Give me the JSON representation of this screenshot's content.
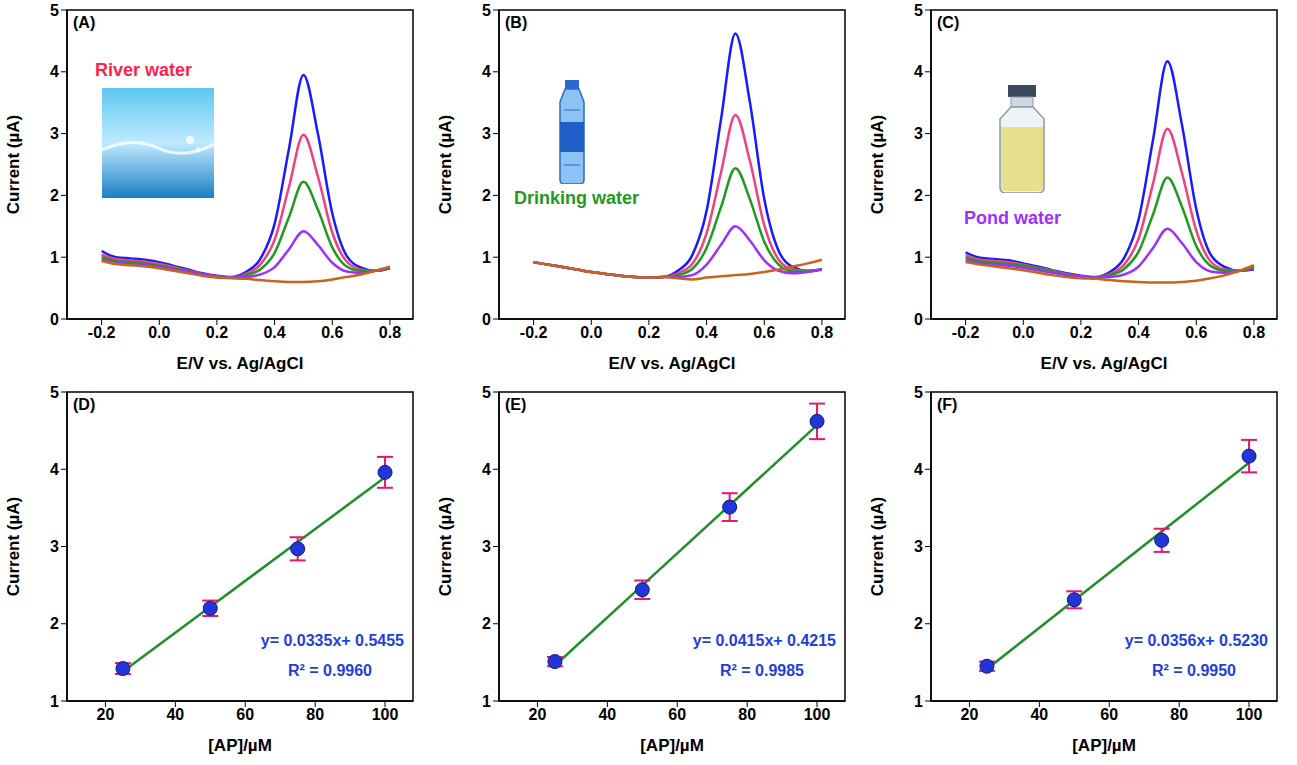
{
  "chart_data": [
    {
      "panel": "(A)",
      "type": "line",
      "annotation": "River water",
      "x_label": "E/V vs. Ag/AgCl",
      "y_label": "Current (µA)",
      "xlim": [
        -0.32,
        0.88
      ],
      "xticks": [
        -0.2,
        {
          "value": 0,
          "label": "0.0"
        },
        0.2,
        0.4,
        0.6,
        0.8
      ],
      "ylim": [
        0,
        5
      ],
      "yticks": [
        0,
        1,
        2,
        3,
        4,
        5
      ],
      "x": [
        -0.2,
        -0.15,
        -0.1,
        -0.05,
        0,
        0.05,
        0.1,
        0.15,
        0.2,
        0.25,
        0.3,
        0.35,
        0.4,
        0.45,
        0.5,
        0.55,
        0.6,
        0.65,
        0.7,
        0.75,
        0.8
      ],
      "series": [
        {
          "color": "#1a1aff",
          "values": [
            1.1,
            1.0,
            0.98,
            0.96,
            0.92,
            0.86,
            0.8,
            0.74,
            0.7,
            0.68,
            0.76,
            0.97,
            1.54,
            2.76,
            3.95,
            3.0,
            1.71,
            1.02,
            0.83,
            0.78,
            0.82
          ]
        },
        {
          "color": "#f0407f",
          "values": [
            1.04,
            0.97,
            0.95,
            0.93,
            0.89,
            0.84,
            0.78,
            0.73,
            0.69,
            0.67,
            0.73,
            0.88,
            1.28,
            2.14,
            2.98,
            2.31,
            1.4,
            0.93,
            0.8,
            0.78,
            0.82
          ]
        },
        {
          "color": "#1f9a1f",
          "values": [
            1.0,
            0.94,
            0.92,
            0.9,
            0.86,
            0.82,
            0.77,
            0.72,
            0.68,
            0.67,
            0.71,
            0.8,
            1.07,
            1.65,
            2.22,
            1.77,
            1.16,
            0.85,
            0.78,
            0.78,
            0.82
          ]
        },
        {
          "color": "#9b30ff",
          "values": [
            0.96,
            0.91,
            0.89,
            0.87,
            0.84,
            0.8,
            0.76,
            0.72,
            0.68,
            0.67,
            0.68,
            0.72,
            0.84,
            1.13,
            1.42,
            1.2,
            0.91,
            0.77,
            0.75,
            0.78,
            0.82
          ]
        },
        {
          "color": "#c8641e",
          "values": [
            0.94,
            0.89,
            0.87,
            0.85,
            0.82,
            0.78,
            0.74,
            0.7,
            0.67,
            0.66,
            0.65,
            0.63,
            0.61,
            0.6,
            0.6,
            0.61,
            0.64,
            0.68,
            0.72,
            0.78,
            0.85
          ]
        }
      ]
    },
    {
      "panel": "(B)",
      "type": "line",
      "annotation": "Drinking water",
      "x_label": "E/V vs. Ag/AgCl",
      "y_label": "Current (µA)",
      "xlim": [
        -0.32,
        0.88
      ],
      "xticks": [
        -0.2,
        {
          "value": 0,
          "label": "0.0"
        },
        0.2,
        0.4,
        0.6,
        0.8
      ],
      "ylim": [
        0,
        5
      ],
      "yticks": [
        0,
        1,
        2,
        3,
        4,
        5
      ],
      "x": [
        -0.2,
        -0.15,
        -0.1,
        -0.05,
        0,
        0.05,
        0.1,
        0.15,
        0.2,
        0.25,
        0.3,
        0.35,
        0.4,
        0.45,
        0.5,
        0.55,
        0.6,
        0.65,
        0.7,
        0.75,
        0.8
      ],
      "series": [
        {
          "color": "#1a1aff",
          "values": [
            0.92,
            0.88,
            0.84,
            0.8,
            0.76,
            0.73,
            0.7,
            0.68,
            0.67,
            0.68,
            0.78,
            1.03,
            1.75,
            3.23,
            4.62,
            3.51,
            1.94,
            1.1,
            0.84,
            0.78,
            0.8
          ]
        },
        {
          "color": "#f0407f",
          "values": [
            0.92,
            0.88,
            0.84,
            0.8,
            0.76,
            0.73,
            0.7,
            0.68,
            0.67,
            0.68,
            0.74,
            0.89,
            1.39,
            2.37,
            3.3,
            2.56,
            1.52,
            0.96,
            0.8,
            0.78,
            0.8
          ]
        },
        {
          "color": "#1f9a1f",
          "values": [
            0.92,
            0.88,
            0.84,
            0.8,
            0.76,
            0.73,
            0.7,
            0.68,
            0.67,
            0.68,
            0.71,
            0.81,
            1.15,
            1.81,
            2.44,
            1.94,
            1.25,
            0.88,
            0.77,
            0.77,
            0.8
          ]
        },
        {
          "color": "#9b30ff",
          "values": [
            0.92,
            0.88,
            0.84,
            0.8,
            0.76,
            0.73,
            0.7,
            0.68,
            0.67,
            0.68,
            0.68,
            0.71,
            0.88,
            1.2,
            1.5,
            1.27,
            0.95,
            0.78,
            0.74,
            0.76,
            0.8
          ]
        },
        {
          "color": "#c8641e",
          "values": [
            0.92,
            0.88,
            0.84,
            0.8,
            0.76,
            0.73,
            0.7,
            0.68,
            0.67,
            0.68,
            0.66,
            0.64,
            0.67,
            0.69,
            0.71,
            0.73,
            0.76,
            0.8,
            0.85,
            0.9,
            0.96
          ]
        }
      ]
    },
    {
      "panel": "(C)",
      "type": "line",
      "annotation": "Pond water",
      "x_label": "E/V vs. Ag/AgCl",
      "y_label": "Current (µA)",
      "xlim": [
        -0.32,
        0.88
      ],
      "xticks": [
        -0.2,
        {
          "value": 0,
          "label": "0.0"
        },
        0.2,
        0.4,
        0.6,
        0.8
      ],
      "ylim": [
        0,
        5
      ],
      "yticks": [
        0,
        1,
        2,
        3,
        4,
        5
      ],
      "x": [
        -0.2,
        -0.15,
        -0.1,
        -0.05,
        0,
        0.05,
        0.1,
        0.15,
        0.2,
        0.25,
        0.3,
        0.35,
        0.4,
        0.45,
        0.5,
        0.55,
        0.6,
        0.65,
        0.7,
        0.75,
        0.8
      ],
      "series": [
        {
          "color": "#1a1aff",
          "values": [
            1.08,
            0.99,
            0.97,
            0.95,
            0.9,
            0.85,
            0.79,
            0.74,
            0.7,
            0.68,
            0.76,
            0.99,
            1.61,
            2.9,
            4.17,
            3.15,
            1.78,
            1.04,
            0.84,
            0.78,
            0.8
          ]
        },
        {
          "color": "#f0407f",
          "values": [
            1.03,
            0.96,
            0.94,
            0.92,
            0.88,
            0.83,
            0.78,
            0.73,
            0.69,
            0.67,
            0.73,
            0.88,
            1.3,
            2.19,
            3.08,
            2.37,
            1.43,
            0.93,
            0.8,
            0.78,
            0.82
          ]
        },
        {
          "color": "#1f9a1f",
          "values": [
            0.99,
            0.93,
            0.91,
            0.89,
            0.86,
            0.82,
            0.77,
            0.72,
            0.68,
            0.67,
            0.71,
            0.81,
            1.09,
            1.69,
            2.29,
            1.82,
            1.18,
            0.86,
            0.78,
            0.78,
            0.84
          ]
        },
        {
          "color": "#9b30ff",
          "values": [
            0.95,
            0.9,
            0.88,
            0.86,
            0.83,
            0.79,
            0.75,
            0.71,
            0.68,
            0.67,
            0.68,
            0.72,
            0.85,
            1.15,
            1.46,
            1.23,
            0.92,
            0.77,
            0.75,
            0.78,
            0.86
          ]
        },
        {
          "color": "#c8641e",
          "values": [
            0.92,
            0.88,
            0.85,
            0.82,
            0.79,
            0.75,
            0.71,
            0.68,
            0.66,
            0.65,
            0.63,
            0.61,
            0.6,
            0.59,
            0.59,
            0.6,
            0.62,
            0.66,
            0.71,
            0.78,
            0.87
          ]
        }
      ]
    },
    {
      "panel": "(D)",
      "type": "scatter",
      "x_label": "[AP]/µM",
      "y_label": "Current (µA)",
      "xlim": [
        9,
        108
      ],
      "xticks": [
        20,
        40,
        60,
        80,
        100
      ],
      "ylim": [
        1,
        5
      ],
      "yticks": [
        1,
        2,
        3,
        4,
        5
      ],
      "x": [
        25,
        50,
        75,
        100
      ],
      "values": [
        1.42,
        2.2,
        2.97,
        3.96
      ],
      "errors": [
        0.07,
        0.1,
        0.15,
        0.2
      ],
      "color": "#2236d8",
      "marker": "circle",
      "fit": {
        "slope": 0.0335,
        "intercept": 0.5455,
        "equation": "y= 0.0335x+ 0.5455",
        "r2_label": "R² = 0.9960"
      }
    },
    {
      "panel": "(E)",
      "type": "scatter",
      "x_label": "[AP]/µM",
      "y_label": "Current (µA)",
      "xlim": [
        9,
        108
      ],
      "xticks": [
        20,
        40,
        60,
        80,
        100
      ],
      "ylim": [
        1,
        5
      ],
      "yticks": [
        1,
        2,
        3,
        4,
        5
      ],
      "x": [
        25,
        50,
        75,
        100
      ],
      "values": [
        1.51,
        2.44,
        3.51,
        4.62
      ],
      "errors": [
        0.06,
        0.12,
        0.18,
        0.23
      ],
      "color": "#2236d8",
      "marker": "circle",
      "fit": {
        "slope": 0.0415,
        "intercept": 0.4215,
        "equation": "y= 0.0415x+ 0.4215",
        "r2_label": "R² = 0.9985"
      }
    },
    {
      "panel": "(F)",
      "type": "scatter",
      "x_label": "[AP]/µM",
      "y_label": "Current (µA)",
      "xlim": [
        9,
        108
      ],
      "xticks": [
        20,
        40,
        60,
        80,
        100
      ],
      "ylim": [
        1,
        5
      ],
      "yticks": [
        1,
        2,
        3,
        4,
        5
      ],
      "x": [
        25,
        50,
        75,
        100
      ],
      "values": [
        1.45,
        2.31,
        3.08,
        4.17
      ],
      "errors": [
        0.06,
        0.11,
        0.15,
        0.21
      ],
      "color": "#2236d8",
      "marker": "circle",
      "fit": {
        "slope": 0.0356,
        "intercept": 0.523,
        "equation": "y= 0.0356x+ 0.5230",
        "r2_label": "R² = 0.9950"
      }
    }
  ]
}
